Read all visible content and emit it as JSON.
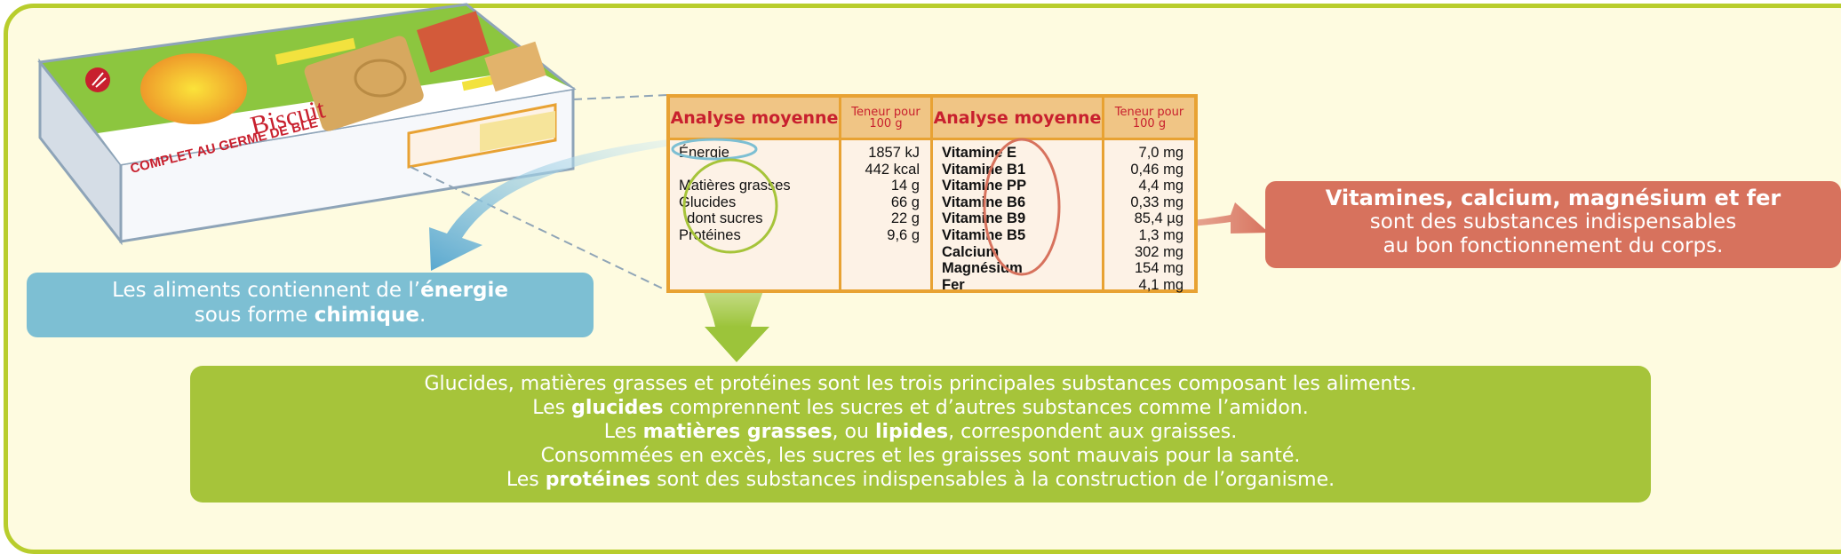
{
  "package": {
    "brand": "Biscuit",
    "subtitle": "COMPLET AU GERME DE BLÉ"
  },
  "nutrition_table": {
    "header_analysis_left": "Analyse moyenne",
    "header_content_left": "Teneur pour 100 g",
    "header_analysis_right": "Analyse moyenne",
    "header_content_right": "Teneur pour 100 g",
    "left_rows": [
      {
        "name": "Énergie",
        "value": "1857 kJ"
      },
      {
        "name": "",
        "value": "442 kcal"
      },
      {
        "name": "Matières grasses",
        "value": "14 g"
      },
      {
        "name": "Glucides",
        "value": "66 g"
      },
      {
        "name": "  dont sucres",
        "value": "22 g"
      },
      {
        "name": "Protéines",
        "value": "9,6 g"
      }
    ],
    "right_rows": [
      {
        "name": "Vitamine E",
        "value": "7,0 mg"
      },
      {
        "name": "Vitamine B1",
        "value": "0,46 mg"
      },
      {
        "name": "Vitamine PP",
        "value": "4,4 mg"
      },
      {
        "name": "Vitamine B6",
        "value": "0,33 mg"
      },
      {
        "name": "Vitamine B9",
        "value": "85,4 µg"
      },
      {
        "name": "Vitamine B5",
        "value": "1,3 mg"
      },
      {
        "name": "Calcium",
        "value": "302 mg"
      },
      {
        "name": "Magnésium",
        "value": "154 mg"
      },
      {
        "name": "Fer",
        "value": "4,1 mg"
      }
    ]
  },
  "energy_box": {
    "line1_a": "Les aliments contiennent de l’",
    "line1_b": "énergie",
    "line2_a": "sous forme ",
    "line2_b": "chimique",
    "line2_c": "."
  },
  "vitamin_box": {
    "line1": "Vitamines, calcium, magnésium et fer",
    "line2": "sont des substances indispensables",
    "line3": "au bon fonctionnement du corps."
  },
  "main_box": {
    "line1": "Glucides, matières grasses et protéines sont les trois principales substances composant les aliments.",
    "line2_a": "Les ",
    "line2_b": "glucides",
    "line2_c": " comprennent les sucres et d’autres substances comme l’amidon.",
    "line3_a": "Les ",
    "line3_b": "matières grasses",
    "line3_c": ", ou ",
    "line3_d": "lipides",
    "line3_e": ", correspondent aux graisses.",
    "line4": "Consommées en excès, les sucres et les graisses sont mauvais pour la santé.",
    "line5_a": "Les ",
    "line5_b": "protéines",
    "line5_c": " sont des substances indispensables à la construction de l’organisme."
  },
  "colors": {
    "frame": "#b8cd2c",
    "background": "#fefbe0",
    "table_border": "#e8a233",
    "table_header": "#f0c585",
    "header_text": "#c8202e",
    "energy_box": "#7dbfd3",
    "vitamin_box": "#d7725d",
    "main_box": "#a6c43a"
  }
}
